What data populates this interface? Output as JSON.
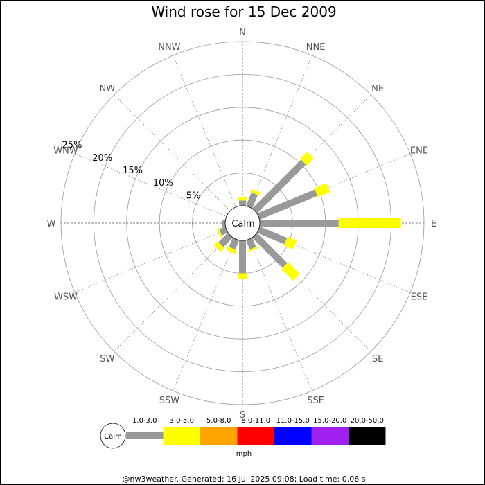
{
  "chart_data": {
    "type": "wind-rose",
    "title": "Wind rose for 15 Dec 2009",
    "directions": [
      "N",
      "NNE",
      "NE",
      "ENE",
      "E",
      "ESE",
      "SE",
      "SSE",
      "S",
      "SSW",
      "SW",
      "WSW",
      "W",
      "WNW",
      "NW",
      "NNW"
    ],
    "ring_labels": [
      "5%",
      "10%",
      "15%",
      "20%",
      "25%"
    ],
    "ring_values": [
      5,
      10,
      15,
      20,
      25
    ],
    "max_percent": 25,
    "calm_label": "Calm",
    "unit": "mph",
    "speed_bins": [
      {
        "label": "1.0-3.0",
        "color": "#999999"
      },
      {
        "label": "3.0-5.0",
        "color": "#ffff00"
      },
      {
        "label": "5.0-8.0",
        "color": "#ffa500"
      },
      {
        "label": "8.0-11.0",
        "color": "#ff0000"
      },
      {
        "label": "11.0-15.0",
        "color": "#0000ff"
      },
      {
        "label": "15.0-20.0",
        "color": "#a020f0"
      },
      {
        "label": "20.0-50.0",
        "color": "#000000"
      }
    ],
    "series": [
      {
        "name": "1.0-3.0",
        "values": [
          0.8,
          2.2,
          10.5,
          9.5,
          12.0,
          4.5,
          6.5,
          1.5,
          5.0,
          1.5,
          2.0,
          1.0,
          0.5,
          0,
          0,
          0
        ]
      },
      {
        "name": "3.0-5.0",
        "values": [
          0.5,
          0.5,
          1.5,
          2.0,
          9.5,
          1.5,
          2.5,
          0.3,
          0.8,
          0.6,
          0.8,
          0.3,
          0,
          0,
          0,
          0
        ]
      }
    ]
  },
  "footer": "@nw3weather. Generated: 16 Jul 2025 09:08; Load time: 0.06 s"
}
